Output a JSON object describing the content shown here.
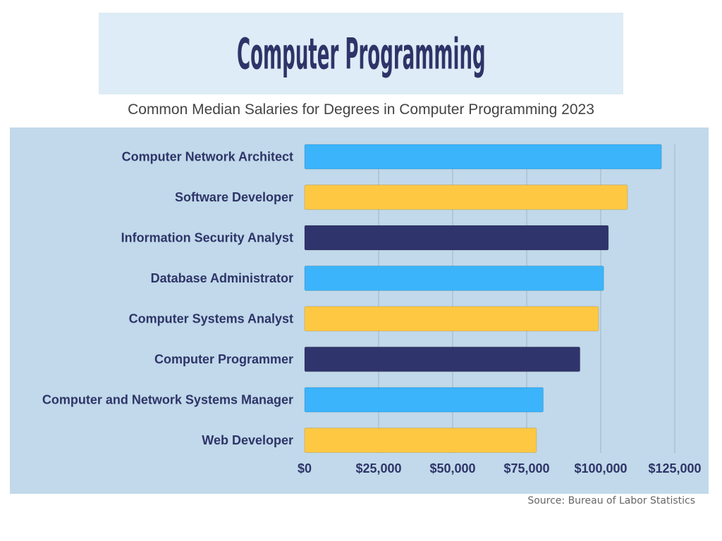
{
  "title": "Computer Programming",
  "subtitle": "Common Median Salaries for Degrees in Computer Programming 2023",
  "source": "Source: Bureau of Labor Statistics",
  "colors": {
    "light_blue": "#3bb4fb",
    "yellow": "#fec843",
    "navy": "#30346c",
    "panel": "#c1d9ea",
    "title_box": "#ddecf6",
    "text": "#2e3468"
  },
  "chart_data": {
    "type": "bar",
    "orientation": "horizontal",
    "categories": [
      "Computer Network Architect",
      "Software Developer",
      "Information Security Analyst",
      "Database Administrator",
      "Computer Systems Analyst",
      "Computer Programmer",
      "Computer and Network Systems Manager",
      "Web Developer"
    ],
    "values": [
      120520,
      109020,
      102600,
      101000,
      99270,
      93000,
      80600,
      78300
    ],
    "bar_colors": [
      "#3bb4fb",
      "#fec843",
      "#30346c",
      "#3bb4fb",
      "#fec843",
      "#30346c",
      "#3bb4fb",
      "#fec843"
    ],
    "xlim": [
      0,
      125000
    ],
    "xticks": [
      0,
      25000,
      50000,
      75000,
      100000,
      125000
    ],
    "xtick_labels": [
      "$0",
      "$25,000",
      "$50,000",
      "$75,000",
      "$100,000",
      "$125,000"
    ],
    "grid": "vertical",
    "legend": "none"
  }
}
